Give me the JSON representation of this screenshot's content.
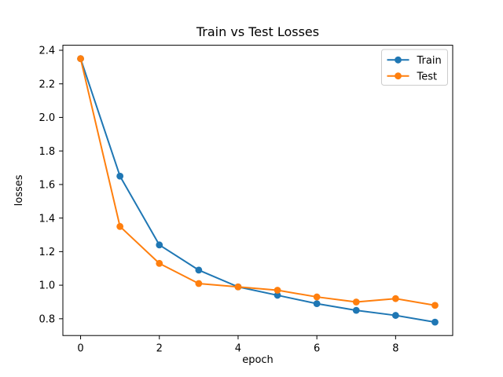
{
  "chart_data": {
    "type": "line",
    "title": "Train vs Test Losses",
    "xlabel": "epoch",
    "ylabel": "losses",
    "x": [
      0,
      1,
      2,
      3,
      4,
      5,
      6,
      7,
      8,
      9
    ],
    "series": [
      {
        "name": "Train",
        "color": "#1f77b4",
        "marker": "o",
        "values": [
          2.35,
          1.65,
          1.24,
          1.09,
          0.99,
          0.94,
          0.89,
          0.85,
          0.82,
          0.78
        ]
      },
      {
        "name": "Test",
        "color": "#ff7f0e",
        "marker": "o",
        "values": [
          2.35,
          1.35,
          1.13,
          1.01,
          0.99,
          0.97,
          0.93,
          0.9,
          0.92,
          0.88
        ]
      }
    ],
    "xlim": [
      -0.45,
      9.45
    ],
    "ylim": [
      0.7,
      2.43
    ],
    "xticks": [
      0,
      2,
      4,
      6,
      8
    ],
    "yticks": [
      0.8,
      1.0,
      1.2,
      1.4,
      1.6,
      1.8,
      2.0,
      2.2,
      2.4
    ],
    "grid": false,
    "legend": {
      "position": "upper right",
      "labels": [
        "Train",
        "Test"
      ]
    },
    "colors": {
      "spine": "#000000",
      "text": "#000000",
      "background": "#ffffff",
      "legend_border": "#cccccc"
    }
  }
}
